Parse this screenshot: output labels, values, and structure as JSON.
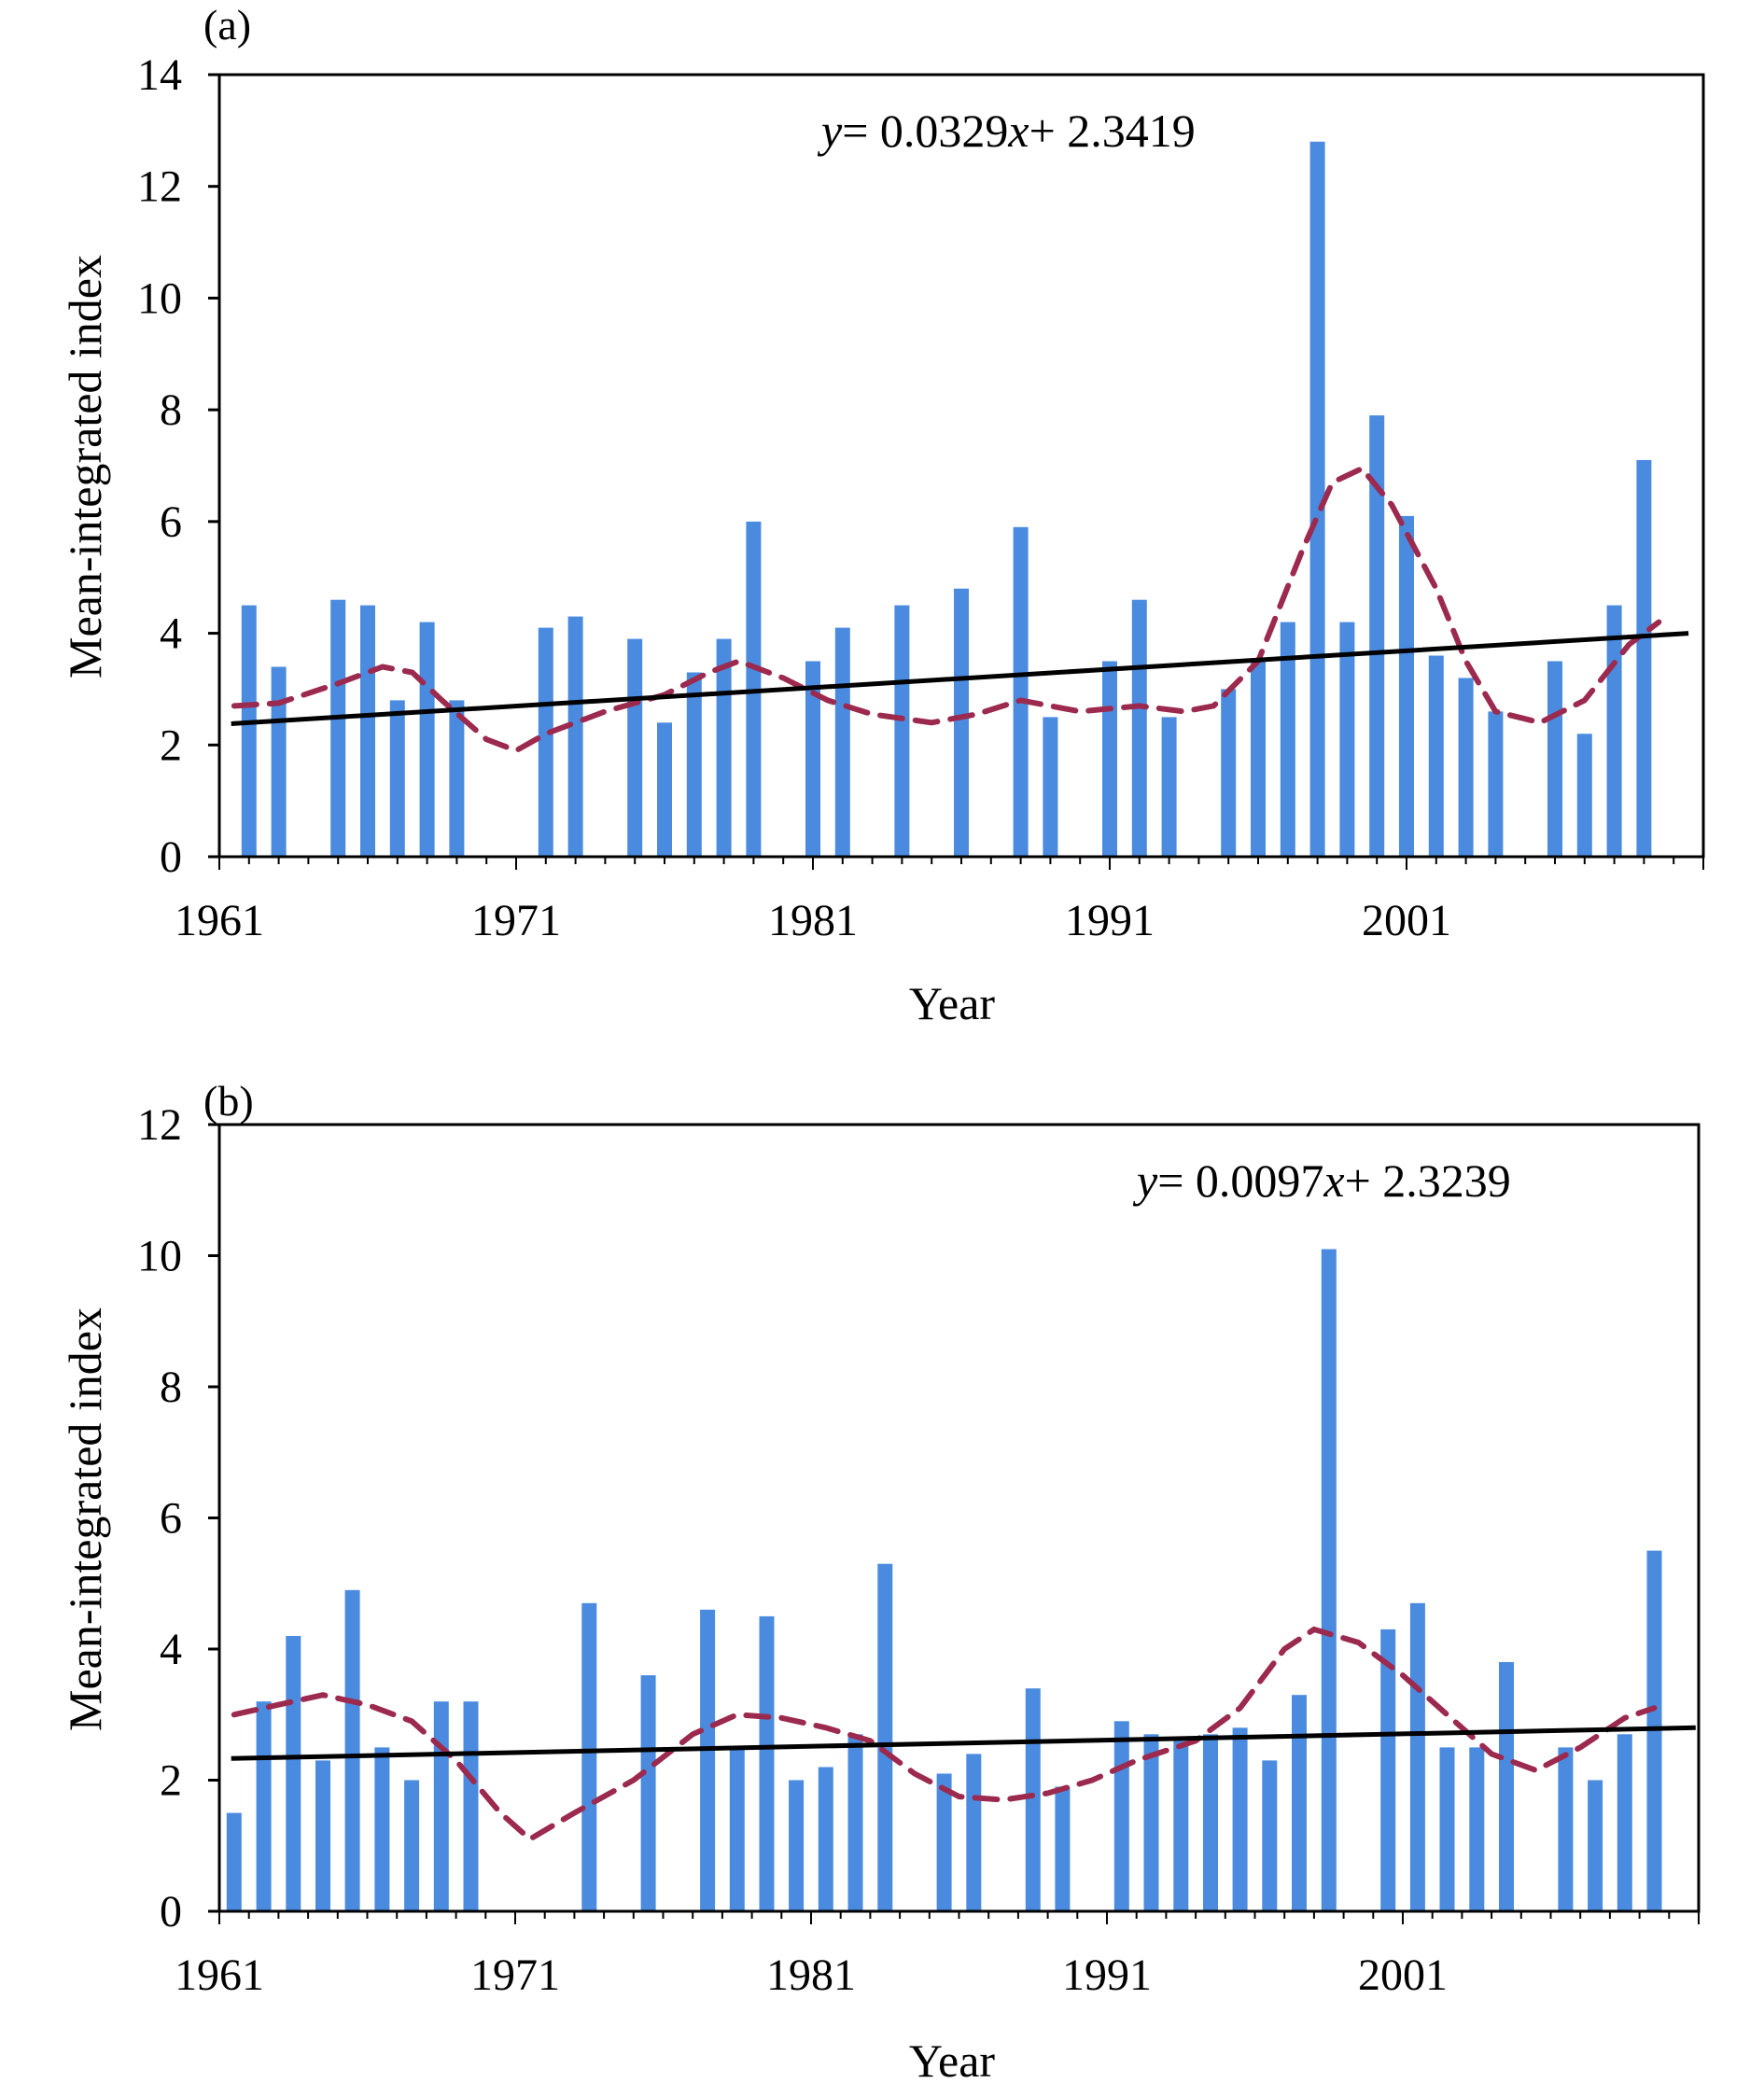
{
  "chart_data": [
    {
      "type": "bar",
      "panel_label": "(a)",
      "xlabel": "Year",
      "ylabel": "Mean-integrated index",
      "ylim": [
        0,
        14
      ],
      "yticks": [
        "0",
        "2",
        "4",
        "6",
        "8",
        "10",
        "12",
        "14"
      ],
      "xticks": [
        "1961",
        "1971",
        "1981",
        "1991",
        "2001"
      ],
      "xlim": [
        1961,
        2011
      ],
      "bar_color": "#4a8be0",
      "equation": {
        "y": "y",
        "eq": "= 0.0329",
        "x": "x",
        "rest": "+ 2.3419"
      },
      "trend": {
        "color": "#000000",
        "start": [
          1961.4,
          2.38
        ],
        "end": [
          2010.5,
          4.0
        ]
      },
      "smooth": {
        "color": "#9c2a4e",
        "points": [
          [
            1961.5,
            2.7
          ],
          [
            1963,
            2.75
          ],
          [
            1965,
            3.1
          ],
          [
            1966.5,
            3.4
          ],
          [
            1967.5,
            3.3
          ],
          [
            1968.5,
            2.8
          ],
          [
            1970,
            2.1
          ],
          [
            1971,
            1.9
          ],
          [
            1972,
            2.2
          ],
          [
            1974,
            2.6
          ],
          [
            1976,
            2.9
          ],
          [
            1977.5,
            3.3
          ],
          [
            1978.5,
            3.5
          ],
          [
            1980,
            3.2
          ],
          [
            1981.5,
            2.8
          ],
          [
            1983,
            2.55
          ],
          [
            1985,
            2.4
          ],
          [
            1986.5,
            2.55
          ],
          [
            1988,
            2.8
          ],
          [
            1990,
            2.6
          ],
          [
            1992,
            2.7
          ],
          [
            1993.5,
            2.6
          ],
          [
            1994.5,
            2.7
          ],
          [
            1996,
            3.5
          ],
          [
            1997.5,
            5.5
          ],
          [
            1998.5,
            6.7
          ],
          [
            1999.5,
            6.95
          ],
          [
            2000.5,
            6.3
          ],
          [
            2002,
            4.8
          ],
          [
            2003,
            3.5
          ],
          [
            2004,
            2.6
          ],
          [
            2005.5,
            2.4
          ],
          [
            2007,
            2.8
          ],
          [
            2008.5,
            3.8
          ],
          [
            2009.5,
            4.2
          ]
        ]
      },
      "bars": [
        {
          "x": 1962,
          "value": 4.5
        },
        {
          "x": 1963,
          "value": 3.4
        },
        {
          "x": 1965,
          "value": 4.6
        },
        {
          "x": 1966,
          "value": 4.5
        },
        {
          "x": 1967,
          "value": 2.8
        },
        {
          "x": 1968,
          "value": 4.2
        },
        {
          "x": 1969,
          "value": 2.8
        },
        {
          "x": 1972,
          "value": 4.1
        },
        {
          "x": 1973,
          "value": 4.3
        },
        {
          "x": 1975,
          "value": 3.9
        },
        {
          "x": 1976,
          "value": 2.4
        },
        {
          "x": 1977,
          "value": 3.3
        },
        {
          "x": 1978,
          "value": 3.9
        },
        {
          "x": 1979,
          "value": 6.0
        },
        {
          "x": 1981,
          "value": 3.5
        },
        {
          "x": 1982,
          "value": 4.1
        },
        {
          "x": 1984,
          "value": 4.5
        },
        {
          "x": 1986,
          "value": 4.8
        },
        {
          "x": 1988,
          "value": 5.9
        },
        {
          "x": 1989,
          "value": 2.5
        },
        {
          "x": 1991,
          "value": 3.5
        },
        {
          "x": 1992,
          "value": 4.6
        },
        {
          "x": 1993,
          "value": 2.5
        },
        {
          "x": 1995,
          "value": 3.0
        },
        {
          "x": 1996,
          "value": 3.5
        },
        {
          "x": 1997,
          "value": 4.2
        },
        {
          "x": 1998,
          "value": 12.8
        },
        {
          "x": 1999,
          "value": 4.2
        },
        {
          "x": 2000,
          "value": 7.9
        },
        {
          "x": 2001,
          "value": 6.1
        },
        {
          "x": 2002,
          "value": 3.6
        },
        {
          "x": 2003,
          "value": 3.2
        },
        {
          "x": 2004,
          "value": 2.6
        },
        {
          "x": 2006,
          "value": 3.5
        },
        {
          "x": 2007,
          "value": 2.2
        },
        {
          "x": 2008,
          "value": 4.5
        },
        {
          "x": 2009,
          "value": 7.1
        }
      ]
    },
    {
      "type": "bar",
      "panel_label": "(b)",
      "xlabel": "Year",
      "ylabel": "Mean-integrated index",
      "ylim": [
        0,
        12
      ],
      "yticks": [
        "0",
        "2",
        "4",
        "6",
        "8",
        "10",
        "12"
      ],
      "xticks": [
        "1961",
        "1971",
        "1981",
        "1991",
        "2001"
      ],
      "xlim": [
        1961,
        2011
      ],
      "bar_color": "#4a8be0",
      "equation": {
        "y": "y",
        "eq": "= 0.0097",
        "x": "x",
        "rest": "+ 2.3239"
      },
      "trend": {
        "color": "#000000",
        "start": [
          1961.4,
          2.33
        ],
        "end": [
          2010.9,
          2.8
        ]
      },
      "smooth": {
        "color": "#9c2a4e",
        "points": [
          [
            1961.5,
            3.0
          ],
          [
            1963,
            3.15
          ],
          [
            1964.5,
            3.3
          ],
          [
            1966,
            3.15
          ],
          [
            1967.5,
            2.9
          ],
          [
            1969,
            2.3
          ],
          [
            1970.5,
            1.5
          ],
          [
            1971.5,
            1.1
          ],
          [
            1973,
            1.5
          ],
          [
            1975,
            2.0
          ],
          [
            1977,
            2.7
          ],
          [
            1978.5,
            3.0
          ],
          [
            1980,
            2.95
          ],
          [
            1981.5,
            2.8
          ],
          [
            1983,
            2.6
          ],
          [
            1984.5,
            2.1
          ],
          [
            1986,
            1.75
          ],
          [
            1987.5,
            1.7
          ],
          [
            1989,
            1.8
          ],
          [
            1990.5,
            2.0
          ],
          [
            1992,
            2.3
          ],
          [
            1994,
            2.6
          ],
          [
            1995.5,
            3.1
          ],
          [
            1997,
            4.0
          ],
          [
            1998,
            4.3
          ],
          [
            1999.5,
            4.1
          ],
          [
            2001,
            3.6
          ],
          [
            2002.5,
            3.0
          ],
          [
            2004,
            2.4
          ],
          [
            2005.5,
            2.15
          ],
          [
            2007,
            2.5
          ],
          [
            2008.5,
            2.95
          ],
          [
            2009.5,
            3.1
          ]
        ]
      },
      "bars": [
        {
          "x": 1961.5,
          "value": 1.5
        },
        {
          "x": 1962.5,
          "value": 3.2
        },
        {
          "x": 1963.5,
          "value": 4.2
        },
        {
          "x": 1964.5,
          "value": 2.3
        },
        {
          "x": 1965.5,
          "value": 4.9
        },
        {
          "x": 1966.5,
          "value": 2.5
        },
        {
          "x": 1967.5,
          "value": 2.0
        },
        {
          "x": 1968.5,
          "value": 3.2
        },
        {
          "x": 1969.5,
          "value": 3.2
        },
        {
          "x": 1973.5,
          "value": 4.7
        },
        {
          "x": 1975.5,
          "value": 3.6
        },
        {
          "x": 1977.5,
          "value": 4.6
        },
        {
          "x": 1978.5,
          "value": 2.5
        },
        {
          "x": 1979.5,
          "value": 4.5
        },
        {
          "x": 1980.5,
          "value": 2.0
        },
        {
          "x": 1981.5,
          "value": 2.2
        },
        {
          "x": 1982.5,
          "value": 2.7
        },
        {
          "x": 1983.5,
          "value": 5.3
        },
        {
          "x": 1985.5,
          "value": 2.1
        },
        {
          "x": 1986.5,
          "value": 2.4
        },
        {
          "x": 1988.5,
          "value": 3.4
        },
        {
          "x": 1989.5,
          "value": 1.9
        },
        {
          "x": 1991.5,
          "value": 2.9
        },
        {
          "x": 1992.5,
          "value": 2.7
        },
        {
          "x": 1993.5,
          "value": 2.6
        },
        {
          "x": 1994.5,
          "value": 2.7
        },
        {
          "x": 1995.5,
          "value": 2.8
        },
        {
          "x": 1996.5,
          "value": 2.3
        },
        {
          "x": 1997.5,
          "value": 3.3
        },
        {
          "x": 1998.5,
          "value": 10.1
        },
        {
          "x": 2000.5,
          "value": 4.3
        },
        {
          "x": 2001.5,
          "value": 4.7
        },
        {
          "x": 2002.5,
          "value": 2.5
        },
        {
          "x": 2003.5,
          "value": 2.5
        },
        {
          "x": 2004.5,
          "value": 3.8
        },
        {
          "x": 2006.5,
          "value": 2.5
        },
        {
          "x": 2007.5,
          "value": 2.0
        },
        {
          "x": 2008.5,
          "value": 2.7
        },
        {
          "x": 2009.5,
          "value": 5.5
        }
      ]
    }
  ]
}
